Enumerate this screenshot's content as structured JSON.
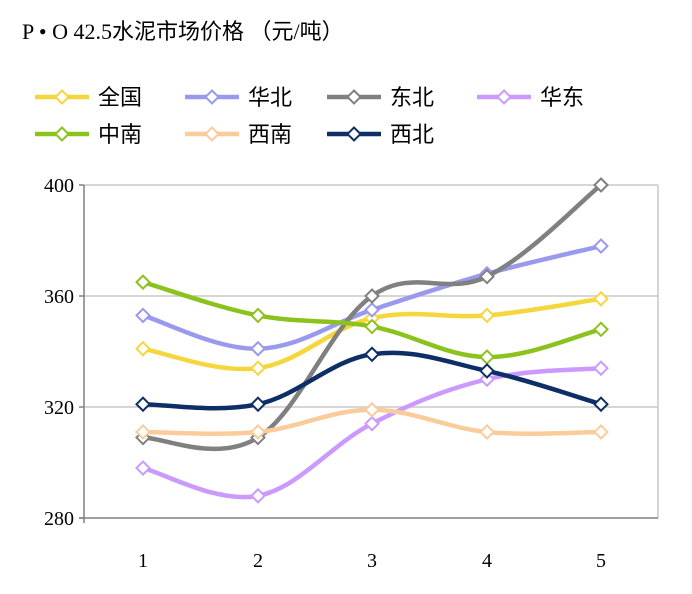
{
  "title": "P • O 42.5水泥市场价格 （元/吨）",
  "chart_data": {
    "type": "line",
    "title": "P • O 42.5水泥市场价格 （元/吨）",
    "x": [
      1,
      2,
      3,
      4,
      5
    ],
    "ylim": [
      280,
      400
    ],
    "yticks": [
      280,
      320,
      360,
      400
    ],
    "grid": true,
    "legend_position": "top",
    "series": [
      {
        "name": "全国",
        "color": "#F5D63D",
        "values": [
          341,
          334,
          352,
          353,
          359
        ]
      },
      {
        "name": "华北",
        "color": "#9999EE",
        "values": [
          353,
          341,
          355,
          368,
          378
        ]
      },
      {
        "name": "东北",
        "color": "#808080",
        "values": [
          309,
          309,
          360,
          367,
          400
        ]
      },
      {
        "name": "华东",
        "color": "#CC99FF",
        "values": [
          298,
          288,
          314,
          330,
          334
        ]
      },
      {
        "name": "中南",
        "color": "#8CC21E",
        "values": [
          365,
          353,
          349,
          338,
          348
        ]
      },
      {
        "name": "西南",
        "color": "#FACB9B",
        "values": [
          311,
          311,
          319,
          311,
          311
        ]
      },
      {
        "name": "西北",
        "color": "#0D2F66",
        "values": [
          321,
          321,
          339,
          333,
          321
        ]
      }
    ]
  }
}
